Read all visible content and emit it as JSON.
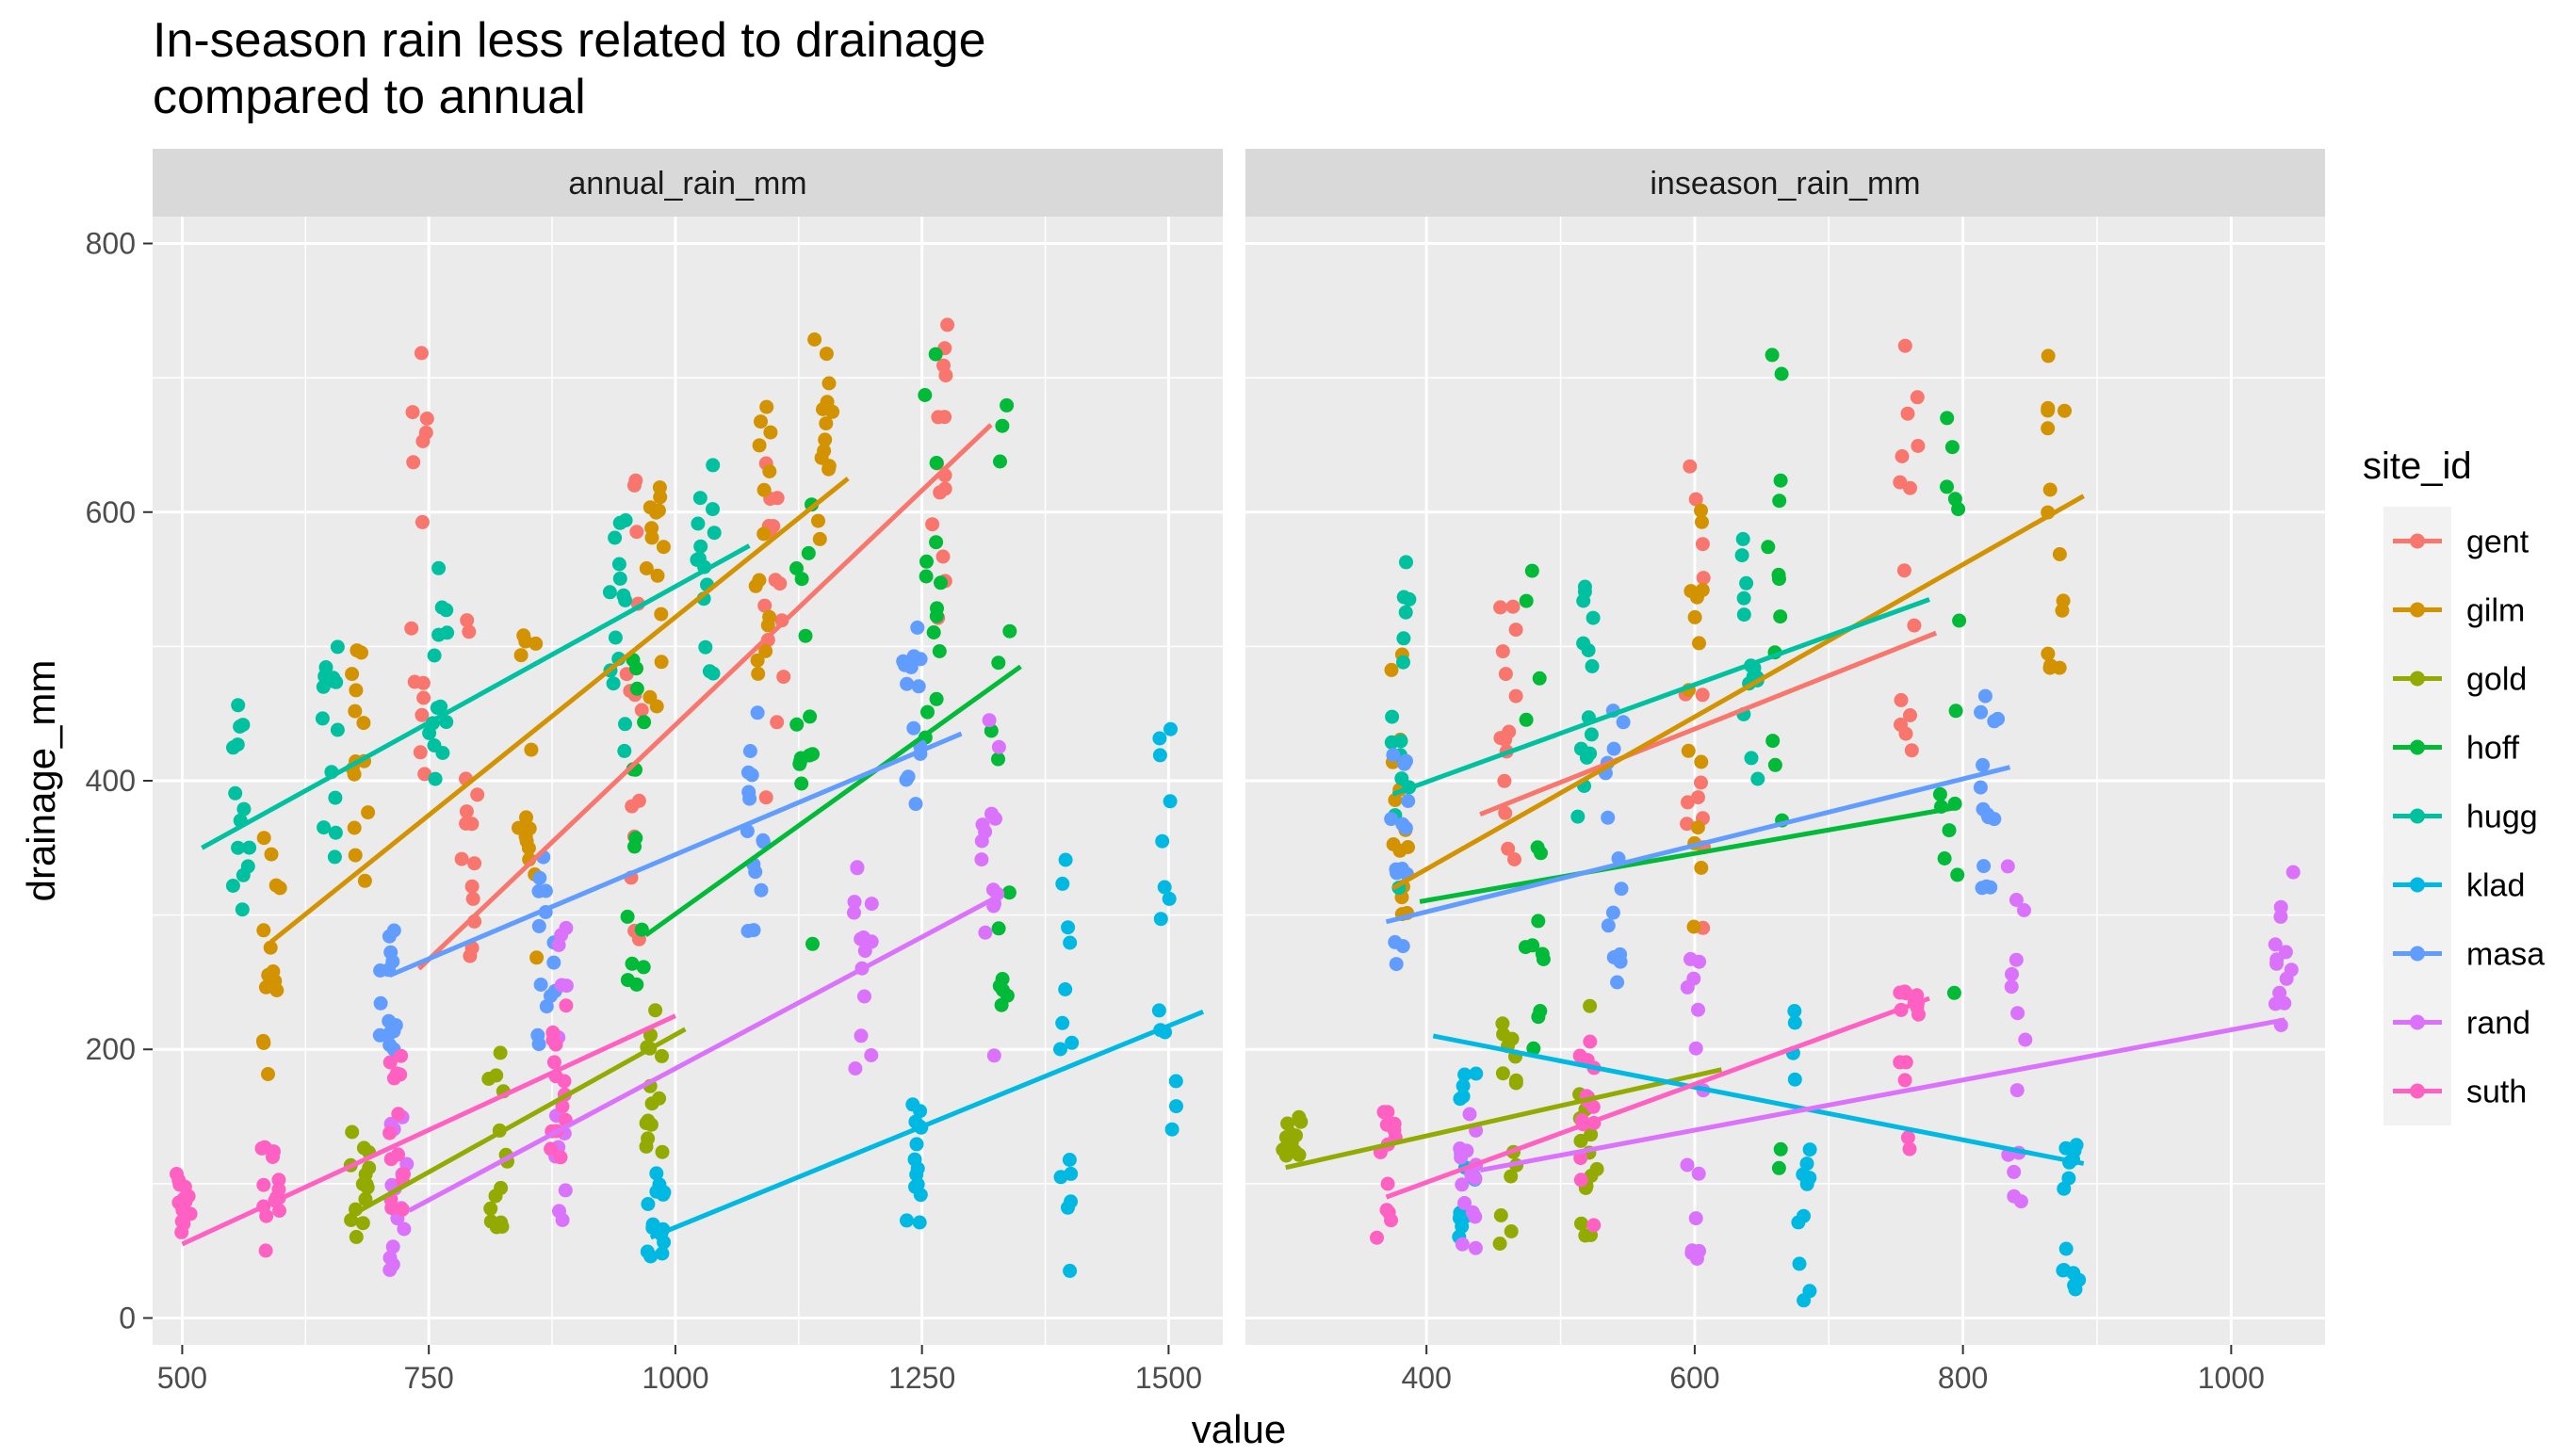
{
  "chart_data": {
    "type": "scatter",
    "title": "In-season rain less related to drainage\ncompared to annual",
    "title_lines": [
      "In-season rain less related to drainage",
      "compared to annual"
    ],
    "xlabel": "value",
    "ylabel": "drainage_mm",
    "ylim": [
      -20,
      820
    ],
    "y_ticks": [
      0,
      200,
      400,
      600,
      800
    ],
    "grid": true,
    "legend": {
      "title": "site_id",
      "placement": "right"
    },
    "series": [
      {
        "name": "gent",
        "color": "#F8766D"
      },
      {
        "name": "gilm",
        "color": "#D39200"
      },
      {
        "name": "gold",
        "color": "#93AA00"
      },
      {
        "name": "hoff",
        "color": "#00BA38"
      },
      {
        "name": "hugg",
        "color": "#00C19F"
      },
      {
        "name": "klad",
        "color": "#00B9E3"
      },
      {
        "name": "masa",
        "color": "#619CFF"
      },
      {
        "name": "rand",
        "color": "#DB72FB"
      },
      {
        "name": "suth",
        "color": "#FF61C3"
      }
    ],
    "panels": [
      {
        "label": "annual_rain_mm",
        "xlim": [
          470,
          1555
        ],
        "x_ticks": [
          500,
          750,
          1000,
          1250,
          1500
        ],
        "trend_lines": {
          "gent": [
            [
              740,
              260
            ],
            [
              1320,
              665
            ]
          ],
          "gilm": [
            [
              590,
              280
            ],
            [
              1175,
              625
            ]
          ],
          "gold": [
            [
              680,
              80
            ],
            [
              1010,
              215
            ]
          ],
          "hoff": [
            [
              970,
              285
            ],
            [
              1350,
              485
            ]
          ],
          "hugg": [
            [
              520,
              350
            ],
            [
              1075,
              575
            ]
          ],
          "klad": [
            [
              975,
              60
            ],
            [
              1535,
              228
            ]
          ],
          "masa": [
            [
              710,
              255
            ],
            [
              1290,
              435
            ]
          ],
          "rand": [
            [
              730,
              80
            ],
            [
              1330,
              315
            ]
          ],
          "suth": [
            [
              500,
              55
            ],
            [
              1000,
              225
            ]
          ]
        },
        "point_clusters": {
          "gent": [
            [
              740,
              330,
              720
            ],
            [
              790,
              240,
              560
            ],
            [
              960,
              280,
              640
            ],
            [
              1100,
              300,
              660
            ],
            [
              1270,
              520,
              740
            ]
          ],
          "gilm": [
            [
              590,
              180,
              380
            ],
            [
              680,
              320,
              500
            ],
            [
              850,
              260,
              520
            ],
            [
              980,
              440,
              620
            ],
            [
              1090,
              470,
              700
            ],
            [
              1150,
              560,
              730
            ]
          ],
          "gold": [
            [
              680,
              60,
              140
            ],
            [
              820,
              60,
              200
            ],
            [
              980,
              110,
              240
            ]
          ],
          "hoff": [
            [
              960,
              240,
              500
            ],
            [
              1130,
              230,
              620
            ],
            [
              1260,
              430,
              740
            ],
            [
              1330,
              230,
              780
            ]
          ],
          "hugg": [
            [
              560,
              300,
              460
            ],
            [
              650,
              340,
              500
            ],
            [
              760,
              380,
              560
            ],
            [
              940,
              420,
              600
            ],
            [
              1030,
              470,
              650
            ]
          ],
          "klad": [
            [
              980,
              40,
              110
            ],
            [
              1240,
              70,
              170
            ],
            [
              1400,
              20,
              400
            ],
            [
              1500,
              120,
              460
            ]
          ],
          "masa": [
            [
              710,
              200,
              300
            ],
            [
              870,
              200,
              360
            ],
            [
              1080,
              280,
              470
            ],
            [
              1240,
              380,
              520
            ]
          ],
          "rand": [
            [
              720,
              30,
              160
            ],
            [
              880,
              60,
              300
            ],
            [
              1190,
              180,
              340
            ],
            [
              1320,
              180,
              470
            ]
          ],
          "suth": [
            [
              500,
              60,
              110
            ],
            [
              590,
              50,
              140
            ],
            [
              720,
              70,
              200
            ],
            [
              880,
              110,
              240
            ]
          ]
        }
      },
      {
        "label": "inseason_rain_mm",
        "xlim": [
          265,
          1070
        ],
        "x_ticks": [
          400,
          600,
          800,
          1000
        ],
        "trend_lines": {
          "gent": [
            [
              440,
              375
            ],
            [
              780,
              510
            ]
          ],
          "gilm": [
            [
              375,
              320
            ],
            [
              890,
              612
            ]
          ],
          "gold": [
            [
              295,
              112
            ],
            [
              620,
              185
            ]
          ],
          "hoff": [
            [
              395,
              310
            ],
            [
              795,
              380
            ]
          ],
          "hugg": [
            [
              375,
              390
            ],
            [
              775,
              535
            ]
          ],
          "klad": [
            [
              405,
              210
            ],
            [
              890,
              115
            ]
          ],
          "masa": [
            [
              370,
              295
            ],
            [
              835,
              410
            ]
          ],
          "rand": [
            [
              440,
              110
            ],
            [
              1040,
              222
            ]
          ],
          "suth": [
            [
              370,
              90
            ],
            [
              775,
              238
            ]
          ]
        },
        "point_clusters": {
          "gent": [
            [
              460,
              330,
              560
            ],
            [
              600,
              260,
              650
            ],
            [
              760,
              420,
              750
            ]
          ],
          "gilm": [
            [
              380,
              300,
              500
            ],
            [
              600,
              280,
              620
            ],
            [
              870,
              480,
              730
            ]
          ],
          "gold": [
            [
              300,
              120,
              150
            ],
            [
              460,
              50,
              220
            ],
            [
              520,
              40,
              240
            ]
          ],
          "hoff": [
            [
              480,
              200,
              600
            ],
            [
              660,
              100,
              780
            ],
            [
              790,
              230,
              740
            ]
          ],
          "hugg": [
            [
              380,
              300,
              590
            ],
            [
              520,
              370,
              560
            ],
            [
              640,
              400,
              620
            ]
          ],
          "klad": [
            [
              430,
              60,
              200
            ],
            [
              680,
              10,
              260
            ],
            [
              880,
              20,
              130
            ]
          ],
          "masa": [
            [
              380,
              260,
              420
            ],
            [
              540,
              240,
              460
            ],
            [
              820,
              320,
              470
            ]
          ],
          "rand": [
            [
              430,
              40,
              160
            ],
            [
              600,
              40,
              280
            ],
            [
              840,
              80,
              340
            ],
            [
              1040,
              190,
              340
            ]
          ],
          "suth": [
            [
              370,
              50,
              160
            ],
            [
              520,
              60,
              240
            ],
            [
              760,
              120,
              260
            ]
          ]
        }
      }
    ]
  }
}
